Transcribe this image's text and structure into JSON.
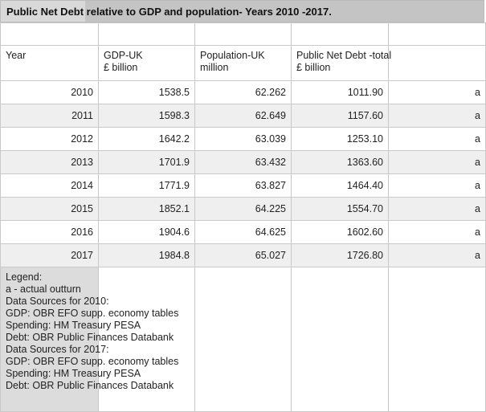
{
  "title": "Public Net Debt  relative to GDP and population- Years 2010 -2017.",
  "headers": [
    {
      "line1": "Year",
      "line2": ""
    },
    {
      "line1": "GDP-UK",
      "line2": "£ billion"
    },
    {
      "line1": "Population-UK",
      "line2": "million"
    },
    {
      "line1": "Public Net Debt -total",
      "line2": "£ billion"
    },
    {
      "line1": "",
      "line2": ""
    }
  ],
  "rows": [
    [
      "2010",
      "1538.5",
      "62.262",
      "1011.90",
      "a"
    ],
    [
      "2011",
      "1598.3",
      "62.649",
      "1157.60",
      "a"
    ],
    [
      "2012",
      "1642.2",
      "63.039",
      "1253.10",
      "a"
    ],
    [
      "2013",
      "1701.9",
      "63.432",
      "1363.60",
      "a"
    ],
    [
      "2014",
      "1771.9",
      "63.827",
      "1464.40",
      "a"
    ],
    [
      "2015",
      "1852.1",
      "64.225",
      "1554.70",
      "a"
    ],
    [
      "2016",
      "1904.6",
      "64.625",
      "1602.60",
      "a"
    ],
    [
      "2017",
      "1984.8",
      "65.027",
      "1726.80",
      "a"
    ]
  ],
  "legend": [
    "Legend:",
    "a - actual outturn",
    "Data Sources for 2010:",
    "GDP: OBR EFO supp. economy tables",
    "Spending: HM Treasury PESA",
    "Debt: OBR Public Finances Databank",
    "Data Sources for 2017:",
    "GDP: OBR EFO supp. economy tables",
    "Spending: HM Treasury PESA",
    "Debt: OBR Public Finances Databank"
  ]
}
